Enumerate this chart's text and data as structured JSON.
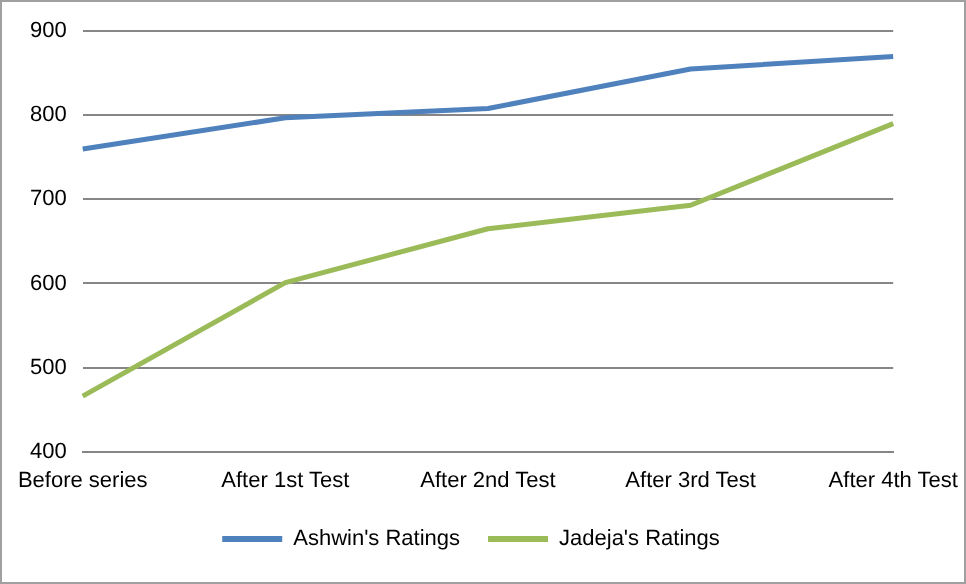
{
  "chart_data": {
    "type": "line",
    "categories": [
      "Before series",
      "After 1st Test",
      "After 2nd Test",
      "After 3rd Test",
      "After 4th Test"
    ],
    "series": [
      {
        "name": "Ashwin's Ratings",
        "color": "#4f81bd",
        "values": [
          760,
          797,
          808,
          855,
          870
        ]
      },
      {
        "name": "Jadeja's Ratings",
        "color": "#9bbb59",
        "values": [
          466,
          601,
          665,
          693,
          790
        ]
      }
    ],
    "ylim": [
      400,
      900
    ],
    "yticks": [
      400,
      500,
      600,
      700,
      800,
      900
    ],
    "grid": "y",
    "legend": "bottom",
    "marker": "none",
    "line_style": "solid"
  }
}
